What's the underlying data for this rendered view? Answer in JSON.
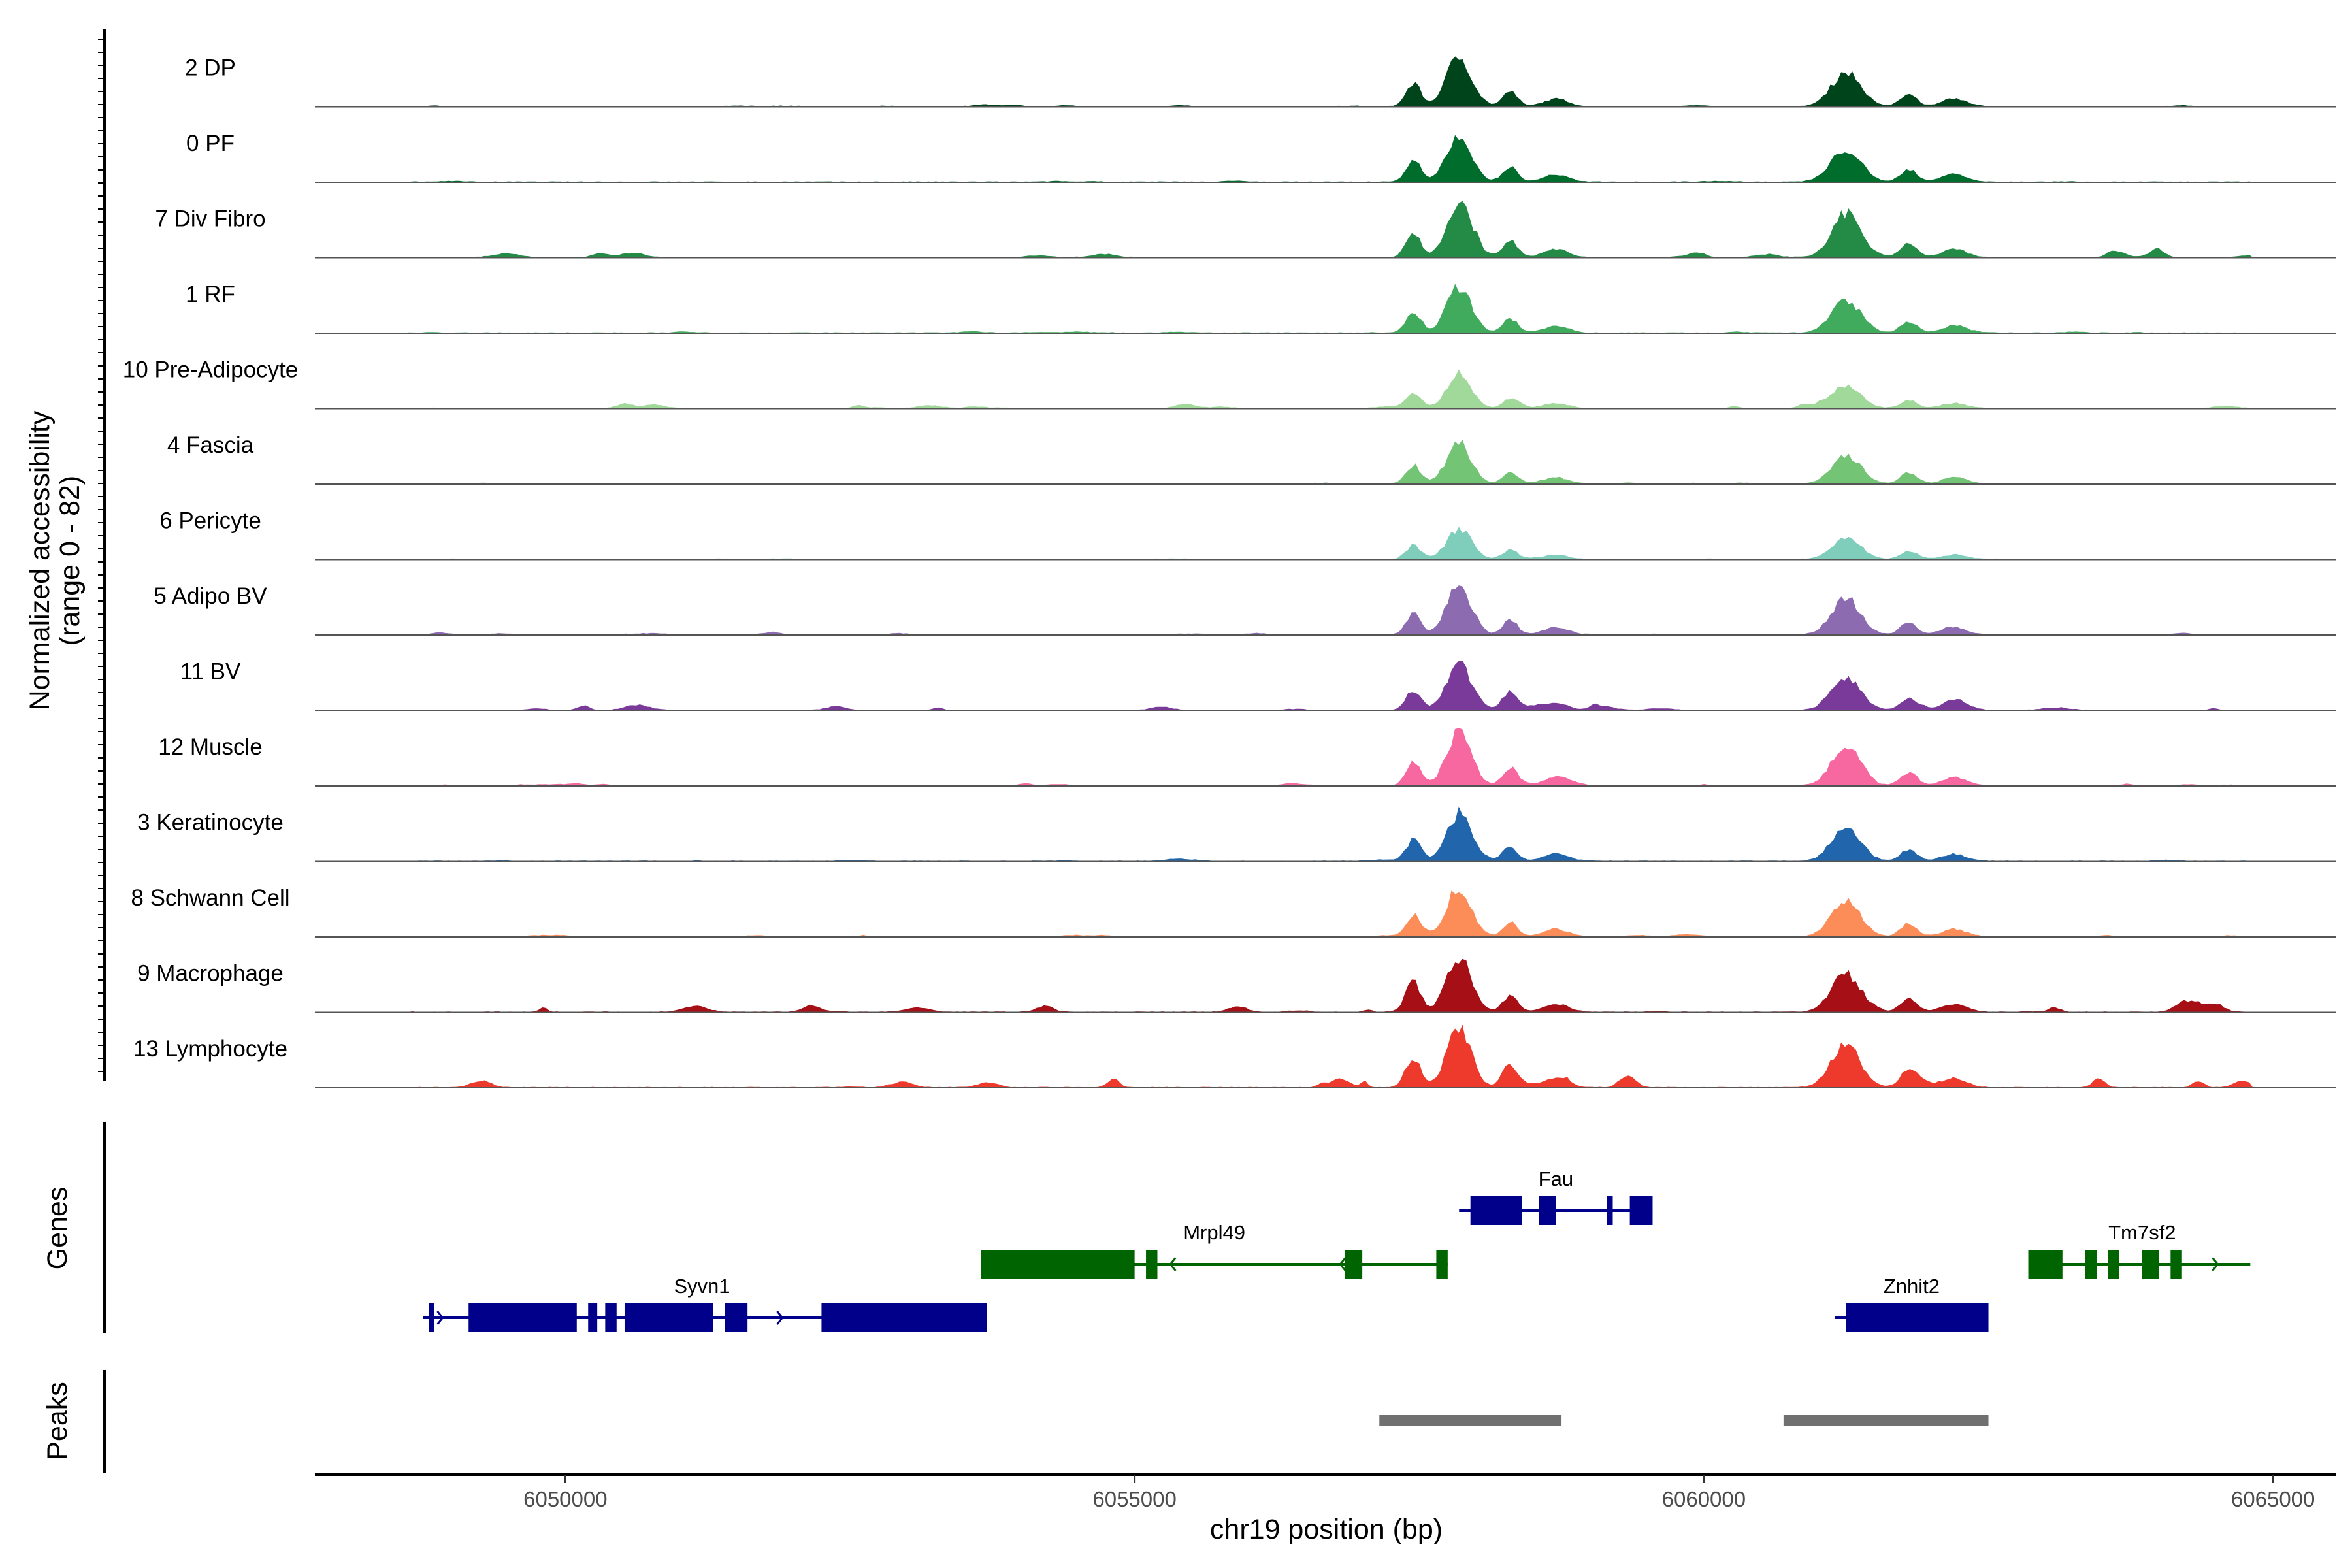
{
  "chart_data": {
    "type": "area",
    "title": "",
    "xlabel": "chr19 position (bp)",
    "ylabel": "Normalized accessibility",
    "ylabel_range": "(range 0 - 82)",
    "ylim": [
      0,
      82
    ],
    "xlim": [
      6047800,
      6065550
    ],
    "x_ticks": [
      6050000,
      6055000,
      6060000,
      6065000
    ],
    "x_tick_labels": [
      "6050000",
      "6055000",
      "6060000",
      "6065000"
    ],
    "tracks": [
      {
        "label": "2 DP",
        "color": "#00441b",
        "scale": 0.9,
        "noise": 0.05
      },
      {
        "label": "0 PF",
        "color": "#006d2c",
        "scale": 0.85,
        "noise": 0.05
      },
      {
        "label": "7 Div Fibro",
        "color": "#238b45",
        "scale": 1.0,
        "noise": 0.18
      },
      {
        "label": "1 RF",
        "color": "#41ab5d",
        "scale": 0.85,
        "noise": 0.05
      },
      {
        "label": "10 Pre-Adipocyte",
        "color": "#a1d99b",
        "scale": 0.6,
        "noise": 0.2
      },
      {
        "label": "4 Fascia",
        "color": "#74c476",
        "scale": 0.75,
        "noise": 0.05
      },
      {
        "label": "6 Pericyte",
        "color": "#7fcdbb",
        "scale": 0.55,
        "noise": 0.03
      },
      {
        "label": "5 Adipo BV",
        "color": "#8c6bb1",
        "scale": 0.9,
        "noise": 0.06
      },
      {
        "label": "11 BV",
        "color": "#7a3a99",
        "scale": 0.85,
        "noise": 0.22
      },
      {
        "label": "12 Muscle",
        "color": "#f768a1",
        "scale": 1.0,
        "noise": 0.08
      },
      {
        "label": "3 Keratinocyte",
        "color": "#2166ac",
        "scale": 0.85,
        "noise": 0.05
      },
      {
        "label": "8 Schwann Cell",
        "color": "#fc8d59",
        "scale": 0.9,
        "noise": 0.06
      },
      {
        "label": "9 Macrophage",
        "color": "#a50f15",
        "scale": 1.0,
        "noise": 0.25
      },
      {
        "label": "13 Lymphocyte",
        "color": "#ee3a2c",
        "scale": 1.1,
        "noise": 0.3
      }
    ],
    "peak_centers": [
      {
        "x": 6057850,
        "width": 150,
        "height": 1.0
      },
      {
        "x": 6057450,
        "width": 90,
        "height": 0.45
      },
      {
        "x": 6058300,
        "width": 90,
        "height": 0.3
      },
      {
        "x": 6058700,
        "width": 150,
        "height": 0.15
      },
      {
        "x": 6061250,
        "width": 180,
        "height": 0.7
      },
      {
        "x": 6061800,
        "width": 100,
        "height": 0.25
      },
      {
        "x": 6062200,
        "width": 150,
        "height": 0.15
      }
    ],
    "genes_panel_label": "Genes",
    "genes": [
      {
        "name": "Syvn1",
        "start": 6048750,
        "end": 6053700,
        "strand": "+",
        "row": 2,
        "color": "#00008b",
        "exons": [
          [
            6048800,
            6048850
          ],
          [
            6049150,
            6050100
          ],
          [
            6050200,
            6050280
          ],
          [
            6050350,
            6050450
          ],
          [
            6050520,
            6051300
          ],
          [
            6051400,
            6051600
          ],
          [
            6052250,
            6053700
          ]
        ]
      },
      {
        "name": "Mrpl49",
        "start": 6053650,
        "end": 6057750,
        "strand": "-",
        "row": 1,
        "color": "#006400",
        "exons": [
          [
            6053650,
            6055000
          ],
          [
            6055100,
            6055200
          ],
          [
            6056850,
            6057000
          ],
          [
            6057650,
            6057750
          ]
        ]
      },
      {
        "name": "Fau",
        "start": 6057850,
        "end": 6059550,
        "strand": "+",
        "row": 0,
        "color": "#00008b",
        "exons": [
          [
            6057950,
            6058400
          ],
          [
            6058550,
            6058700
          ],
          [
            6059150,
            6059200
          ],
          [
            6059350,
            6059550
          ]
        ]
      },
      {
        "name": "Znhit2",
        "start": 6061150,
        "end": 6062500,
        "strand": "+",
        "row": 2,
        "color": "#00008b",
        "exons": [
          [
            6061250,
            6062500
          ]
        ]
      },
      {
        "name": "Tm7sf2",
        "start": 6062850,
        "end": 6064800,
        "strand": "+",
        "row": 1,
        "color": "#006400",
        "exons": [
          [
            6062850,
            6063150
          ],
          [
            6063350,
            6063450
          ],
          [
            6063550,
            6063650
          ],
          [
            6063850,
            6064000
          ],
          [
            6064100,
            6064200
          ]
        ]
      }
    ],
    "peaks_panel_label": "Peaks",
    "peaks": [
      {
        "start": 6057150,
        "end": 6058750
      },
      {
        "start": 6060700,
        "end": 6062500
      }
    ],
    "peak_color": "#707070"
  }
}
